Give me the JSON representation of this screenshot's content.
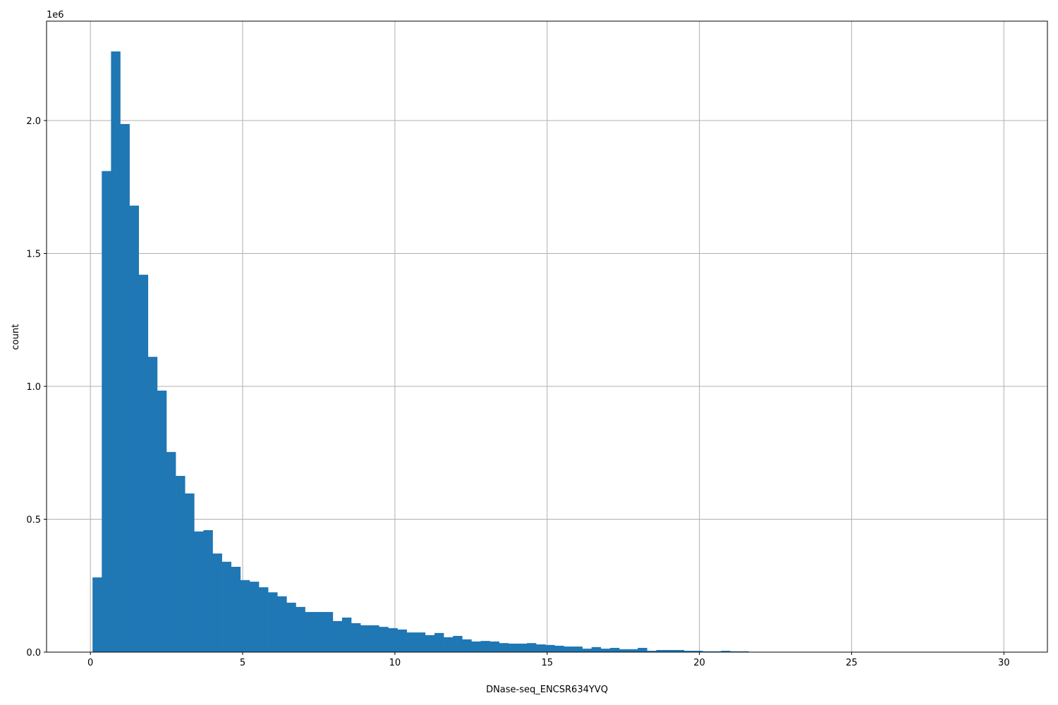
{
  "chart_data": {
    "type": "bar",
    "title": "",
    "xlabel": "DNase-seq_ENCSR634YVQ",
    "ylabel": "count",
    "y_offset_label": "1e6",
    "xlim": [
      -1.44,
      31.43
    ],
    "ylim": [
      0,
      2374000
    ],
    "grid": true,
    "bar_color": "#1f77b4",
    "grid_color": "#b0b0b0",
    "bin_start": 0.07,
    "bin_width": 0.3035,
    "x_ticks": [
      0,
      5,
      10,
      15,
      20,
      25,
      30
    ],
    "x_tick_labels": [
      "0",
      "5",
      "10",
      "15",
      "20",
      "25",
      "30"
    ],
    "y_ticks": [
      0,
      500000,
      1000000,
      1500000,
      2000000
    ],
    "y_tick_labels": [
      "0.0",
      "0.5",
      "1.0",
      "1.5",
      "2.0"
    ],
    "values": [
      281000,
      1810000,
      2260000,
      1987000,
      1680000,
      1420000,
      1111000,
      984000,
      753000,
      663000,
      597000,
      454000,
      459000,
      371000,
      340000,
      321000,
      271000,
      265000,
      244000,
      225000,
      210000,
      186000,
      170000,
      151000,
      151000,
      151000,
      117000,
      130000,
      109000,
      101000,
      101000,
      95000,
      90000,
      85000,
      74000,
      74000,
      64000,
      72000,
      56000,
      61000,
      48000,
      40000,
      42000,
      40000,
      34000,
      32000,
      32000,
      34000,
      29000,
      27000,
      24000,
      21000,
      21000,
      13000,
      19000,
      13000,
      16000,
      11000,
      11000,
      16000,
      5000,
      8000,
      8000,
      8000,
      5000,
      5000,
      3000,
      3000,
      5000,
      3000,
      3000,
      0,
      0,
      0,
      0,
      0,
      0,
      0,
      0,
      0,
      0,
      0,
      0,
      0,
      0,
      0,
      0,
      0,
      0,
      0,
      0,
      0,
      0,
      0,
      0,
      0,
      0,
      0,
      0,
      0
    ]
  }
}
